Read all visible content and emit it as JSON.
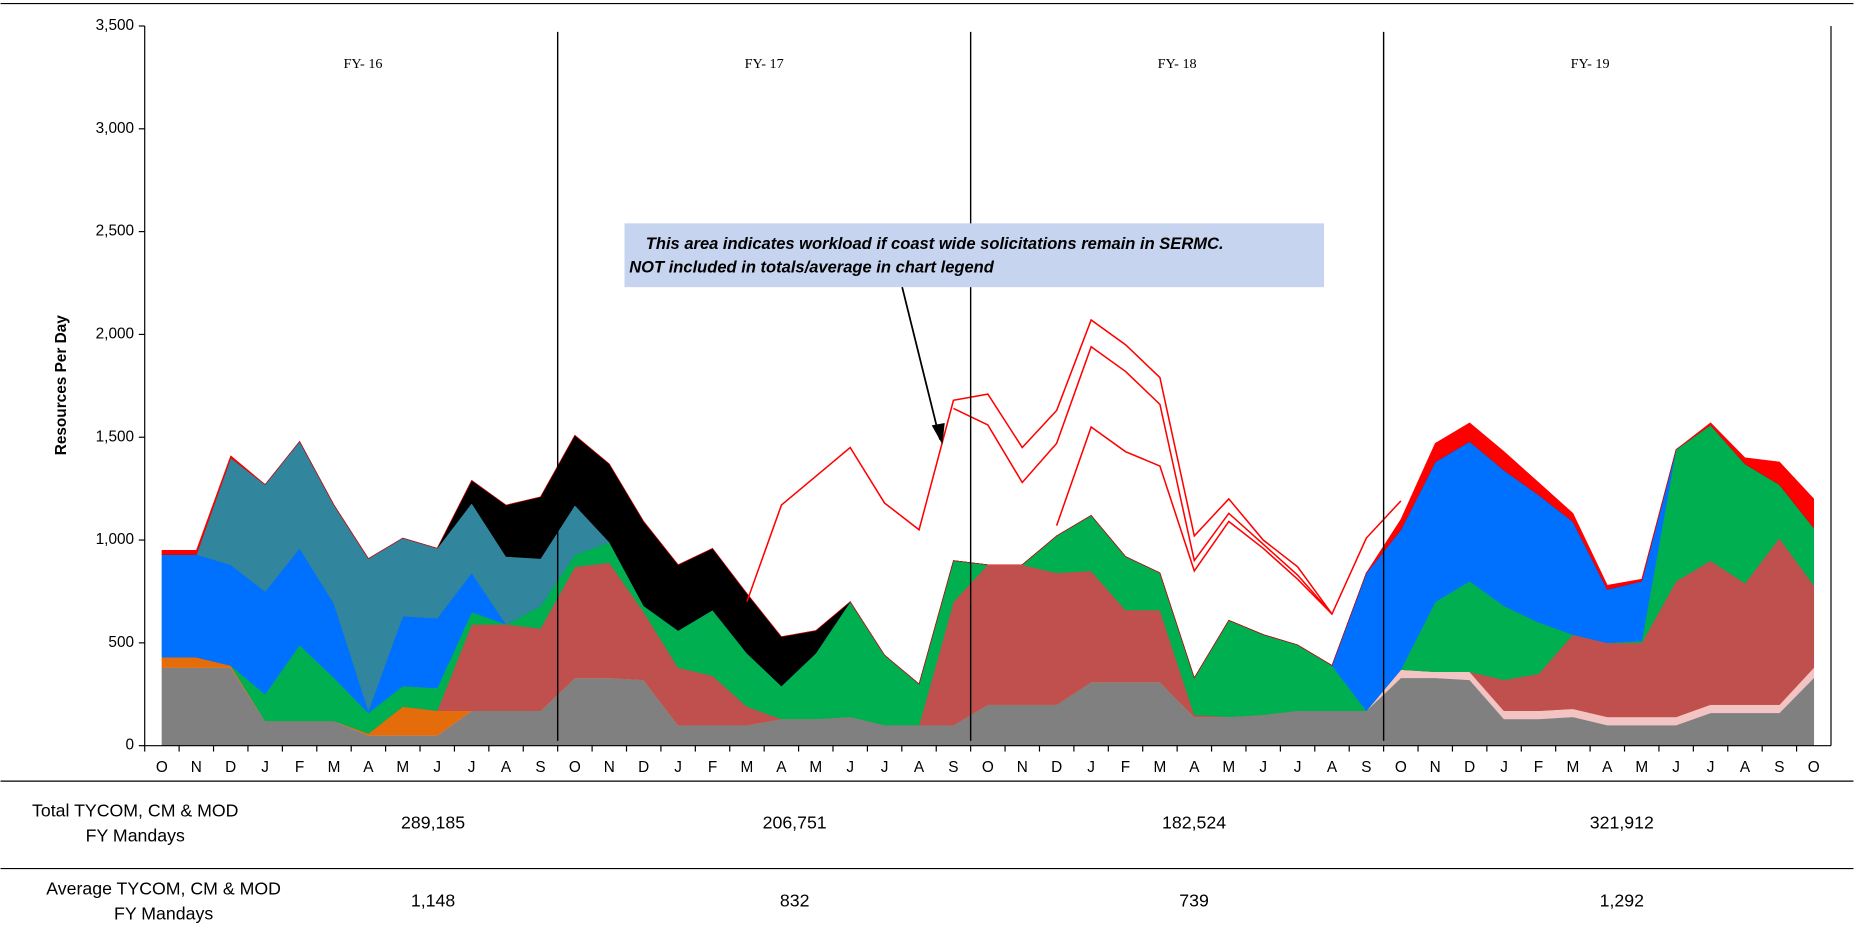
{
  "chart_data": {
    "type": "stacked-area",
    "y_label": "Resources Per Day",
    "categories": [
      "O",
      "N",
      "D",
      "J",
      "F",
      "M",
      "A",
      "M",
      "J",
      "J",
      "A",
      "S",
      "O",
      "N",
      "D",
      "J",
      "F",
      "M",
      "A",
      "M",
      "J",
      "J",
      "A",
      "S",
      "O",
      "N",
      "D",
      "J",
      "F",
      "M",
      "A",
      "M",
      "J",
      "J",
      "A",
      "S",
      "O",
      "N",
      "D",
      "J",
      "F",
      "M",
      "A",
      "M",
      "J",
      "J",
      "A",
      "S",
      "O"
    ],
    "ylim": [
      0,
      3500
    ],
    "yticks": [
      0,
      500,
      {
        "value": 1000,
        "label": "1,000"
      },
      {
        "value": 1500,
        "label": "1,500"
      },
      {
        "value": 2000,
        "label": "2,000"
      },
      {
        "value": 2500,
        "label": "2,500"
      },
      {
        "value": 3000,
        "label": "3,000"
      },
      {
        "value": 3500,
        "label": "3,500"
      }
    ],
    "fiscal_years": [
      "FY- 16",
      "FY- 17",
      "FY- 18",
      "FY- 19"
    ],
    "series": [
      {
        "color": "#808080",
        "values": [
          380,
          380,
          380,
          120,
          120,
          120,
          50,
          50,
          50,
          170,
          170,
          170,
          330,
          330,
          320,
          100,
          100,
          100,
          130,
          130,
          140,
          100,
          100,
          100,
          200,
          200,
          200,
          310,
          310,
          310,
          140,
          140,
          150,
          170,
          170,
          170,
          330,
          330,
          320,
          130,
          130,
          140,
          100,
          100,
          100,
          160,
          160,
          160,
          330
        ]
      },
      {
        "color": "#f2c4c4",
        "values": [
          0,
          0,
          0,
          0,
          0,
          0,
          0,
          0,
          0,
          0,
          0,
          0,
          0,
          0,
          0,
          0,
          0,
          0,
          0,
          0,
          0,
          0,
          0,
          0,
          0,
          0,
          0,
          0,
          0,
          0,
          0,
          0,
          0,
          0,
          0,
          0,
          40,
          30,
          40,
          40,
          40,
          40,
          40,
          40,
          40,
          40,
          40,
          40,
          50
        ]
      },
      {
        "color": "#e46c0a",
        "values": [
          50,
          50,
          10,
          0,
          0,
          0,
          10,
          140,
          120,
          0,
          0,
          0,
          0,
          0,
          0,
          0,
          0,
          0,
          0,
          0,
          0,
          0,
          0,
          0,
          0,
          0,
          0,
          0,
          0,
          0,
          0,
          0,
          0,
          0,
          0,
          0,
          0,
          0,
          0,
          0,
          0,
          0,
          0,
          0,
          0,
          0,
          0,
          0,
          0
        ]
      },
      {
        "color": "#c0504d",
        "values": [
          0,
          0,
          0,
          0,
          0,
          0,
          0,
          0,
          0,
          420,
          420,
          400,
          540,
          560,
          330,
          280,
          240,
          90,
          0,
          0,
          0,
          0,
          0,
          600,
          680,
          680,
          640,
          540,
          350,
          350,
          10,
          0,
          0,
          0,
          0,
          0,
          0,
          0,
          0,
          150,
          180,
          360,
          360,
          360,
          660,
          700,
          590,
          810,
          400
        ]
      },
      {
        "color": "#00b050",
        "values": [
          0,
          0,
          0,
          130,
          370,
          210,
          100,
          100,
          110,
          60,
          0,
          110,
          60,
          100,
          30,
          180,
          320,
          260,
          160,
          320,
          560,
          340,
          200,
          200,
          0,
          0,
          180,
          270,
          260,
          180,
          180,
          470,
          390,
          320,
          220,
          0,
          0,
          340,
          440,
          360,
          250,
          0,
          0,
          10,
          640,
          660,
          580,
          260,
          280
        ]
      },
      {
        "color": "#0070ff",
        "values": [
          500,
          500,
          490,
          500,
          470,
          360,
          10,
          340,
          340,
          190,
          0,
          0,
          0,
          0,
          0,
          0,
          0,
          0,
          0,
          0,
          0,
          0,
          0,
          0,
          0,
          0,
          0,
          0,
          0,
          0,
          0,
          0,
          0,
          0,
          0,
          670,
          680,
          680,
          680,
          660,
          620,
          550,
          260,
          290,
          0,
          0,
          0,
          0,
          0
        ]
      },
      {
        "color": "#31859c",
        "values": [
          0,
          0,
          520,
          520,
          520,
          480,
          740,
          380,
          340,
          340,
          330,
          230,
          240,
          0,
          0,
          0,
          0,
          0,
          0,
          0,
          0,
          0,
          0,
          0,
          0,
          0,
          0,
          0,
          0,
          0,
          0,
          0,
          0,
          0,
          0,
          0,
          0,
          0,
          0,
          0,
          0,
          0,
          0,
          0,
          0,
          0,
          0,
          0,
          0
        ]
      },
      {
        "color": "#000000",
        "values": [
          0,
          0,
          0,
          0,
          0,
          0,
          0,
          0,
          0,
          110,
          250,
          300,
          340,
          380,
          410,
          320,
          300,
          290,
          240,
          110,
          0,
          0,
          0,
          0,
          0,
          0,
          0,
          0,
          0,
          0,
          0,
          0,
          0,
          0,
          0,
          0,
          0,
          0,
          0,
          0,
          0,
          0,
          0,
          0,
          0,
          0,
          0,
          0,
          0
        ]
      },
      {
        "color": "#ff0000",
        "values": [
          20,
          20,
          10,
          0,
          0,
          0,
          0,
          0,
          0,
          0,
          0,
          0,
          0,
          0,
          0,
          0,
          0,
          0,
          0,
          0,
          0,
          0,
          0,
          0,
          0,
          0,
          0,
          0,
          0,
          0,
          0,
          0,
          0,
          0,
          0,
          0,
          50,
          90,
          90,
          90,
          60,
          40,
          20,
          10,
          0,
          10,
          30,
          110,
          140
        ]
      }
    ],
    "coast_wide_lines": {
      "color": "#ff0000",
      "lines": [
        [
          null,
          null,
          null,
          null,
          null,
          null,
          null,
          null,
          null,
          null,
          null,
          null,
          null,
          null,
          null,
          null,
          null,
          700,
          1170,
          1310,
          1450,
          1180,
          1050,
          1680,
          1710,
          1450,
          1630,
          2070,
          1950,
          1790,
          1020,
          1200,
          1000,
          870,
          640,
          1010,
          1190,
          null,
          null,
          null,
          null,
          null,
          null,
          null,
          null,
          null,
          null,
          null,
          null
        ],
        [
          null,
          null,
          null,
          null,
          null,
          null,
          null,
          null,
          null,
          null,
          null,
          null,
          null,
          null,
          null,
          null,
          null,
          null,
          null,
          null,
          null,
          null,
          null,
          1640,
          1560,
          1280,
          1470,
          1940,
          1820,
          1660,
          900,
          1130,
          980,
          830,
          640,
          null,
          null,
          null,
          null,
          null,
          null,
          null,
          null,
          null,
          null,
          null,
          null,
          null,
          null
        ],
        [
          null,
          null,
          null,
          null,
          null,
          null,
          null,
          null,
          null,
          null,
          null,
          null,
          null,
          null,
          null,
          null,
          null,
          null,
          null,
          null,
          null,
          null,
          null,
          null,
          null,
          null,
          1070,
          1550,
          1430,
          1360,
          850,
          1090,
          960,
          810,
          640,
          null,
          null,
          null,
          null,
          null,
          null,
          null,
          null,
          null,
          null,
          null,
          null,
          null,
          null
        ]
      ]
    },
    "annotation": [
      "This area indicates workload if coast wide solicitations remain in SERMC.",
      "NOT included in totals/average in chart legend"
    ]
  },
  "table": {
    "rows": [
      {
        "label": [
          "Total  TYCOM, CM & MOD",
          "FY Mandays"
        ],
        "values": [
          "289,185",
          "206,751",
          "182,524",
          "321,912"
        ]
      },
      {
        "label": [
          "Average TYCOM, CM & MOD",
          "FY Mandays"
        ],
        "values": [
          "1,148",
          "832",
          "739",
          "1,292"
        ]
      }
    ]
  }
}
